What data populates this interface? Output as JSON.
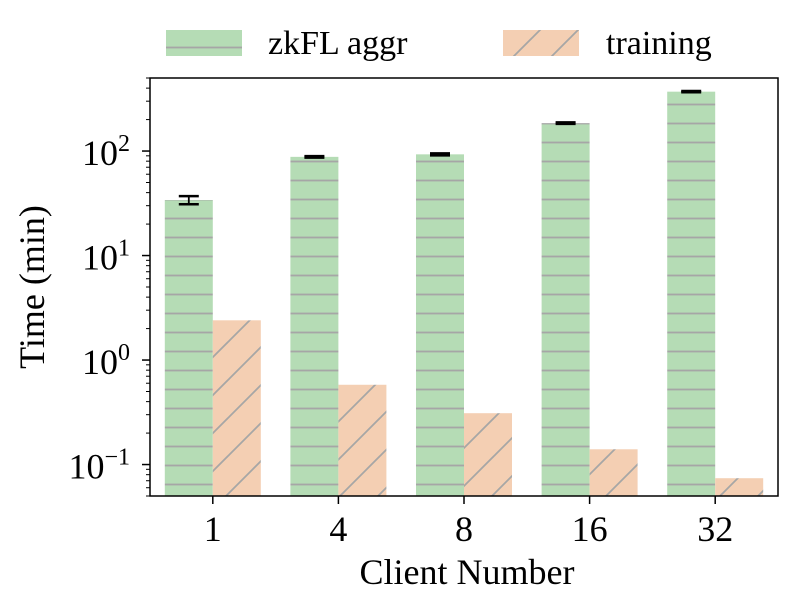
{
  "chart_data": {
    "type": "bar",
    "title": "",
    "xlabel": "Client Number",
    "ylabel": "Time (min)",
    "yscale": "log",
    "ylim": [
      0.05,
      500
    ],
    "grid": false,
    "legend_position": "top",
    "categories": [
      "1",
      "4",
      "8",
      "16",
      "32"
    ],
    "series": [
      {
        "name": "zkFL aggr",
        "values": [
          34,
          88,
          93,
          185,
          370
        ],
        "error": [
          3,
          1.5,
          2,
          3,
          5
        ],
        "color": "#b5dcb5",
        "hatch": "horizontal"
      },
      {
        "name": "training",
        "values": [
          2.4,
          0.58,
          0.31,
          0.14,
          0.074
        ],
        "color": "#f4cfb3",
        "hatch": "diagonal"
      }
    ],
    "yticks": [
      {
        "value": 0.1,
        "base": "10",
        "exp": "−1"
      },
      {
        "value": 1,
        "base": "10",
        "exp": "0"
      },
      {
        "value": 10,
        "base": "10",
        "exp": "1"
      },
      {
        "value": 100,
        "base": "10",
        "exp": "2"
      }
    ]
  }
}
